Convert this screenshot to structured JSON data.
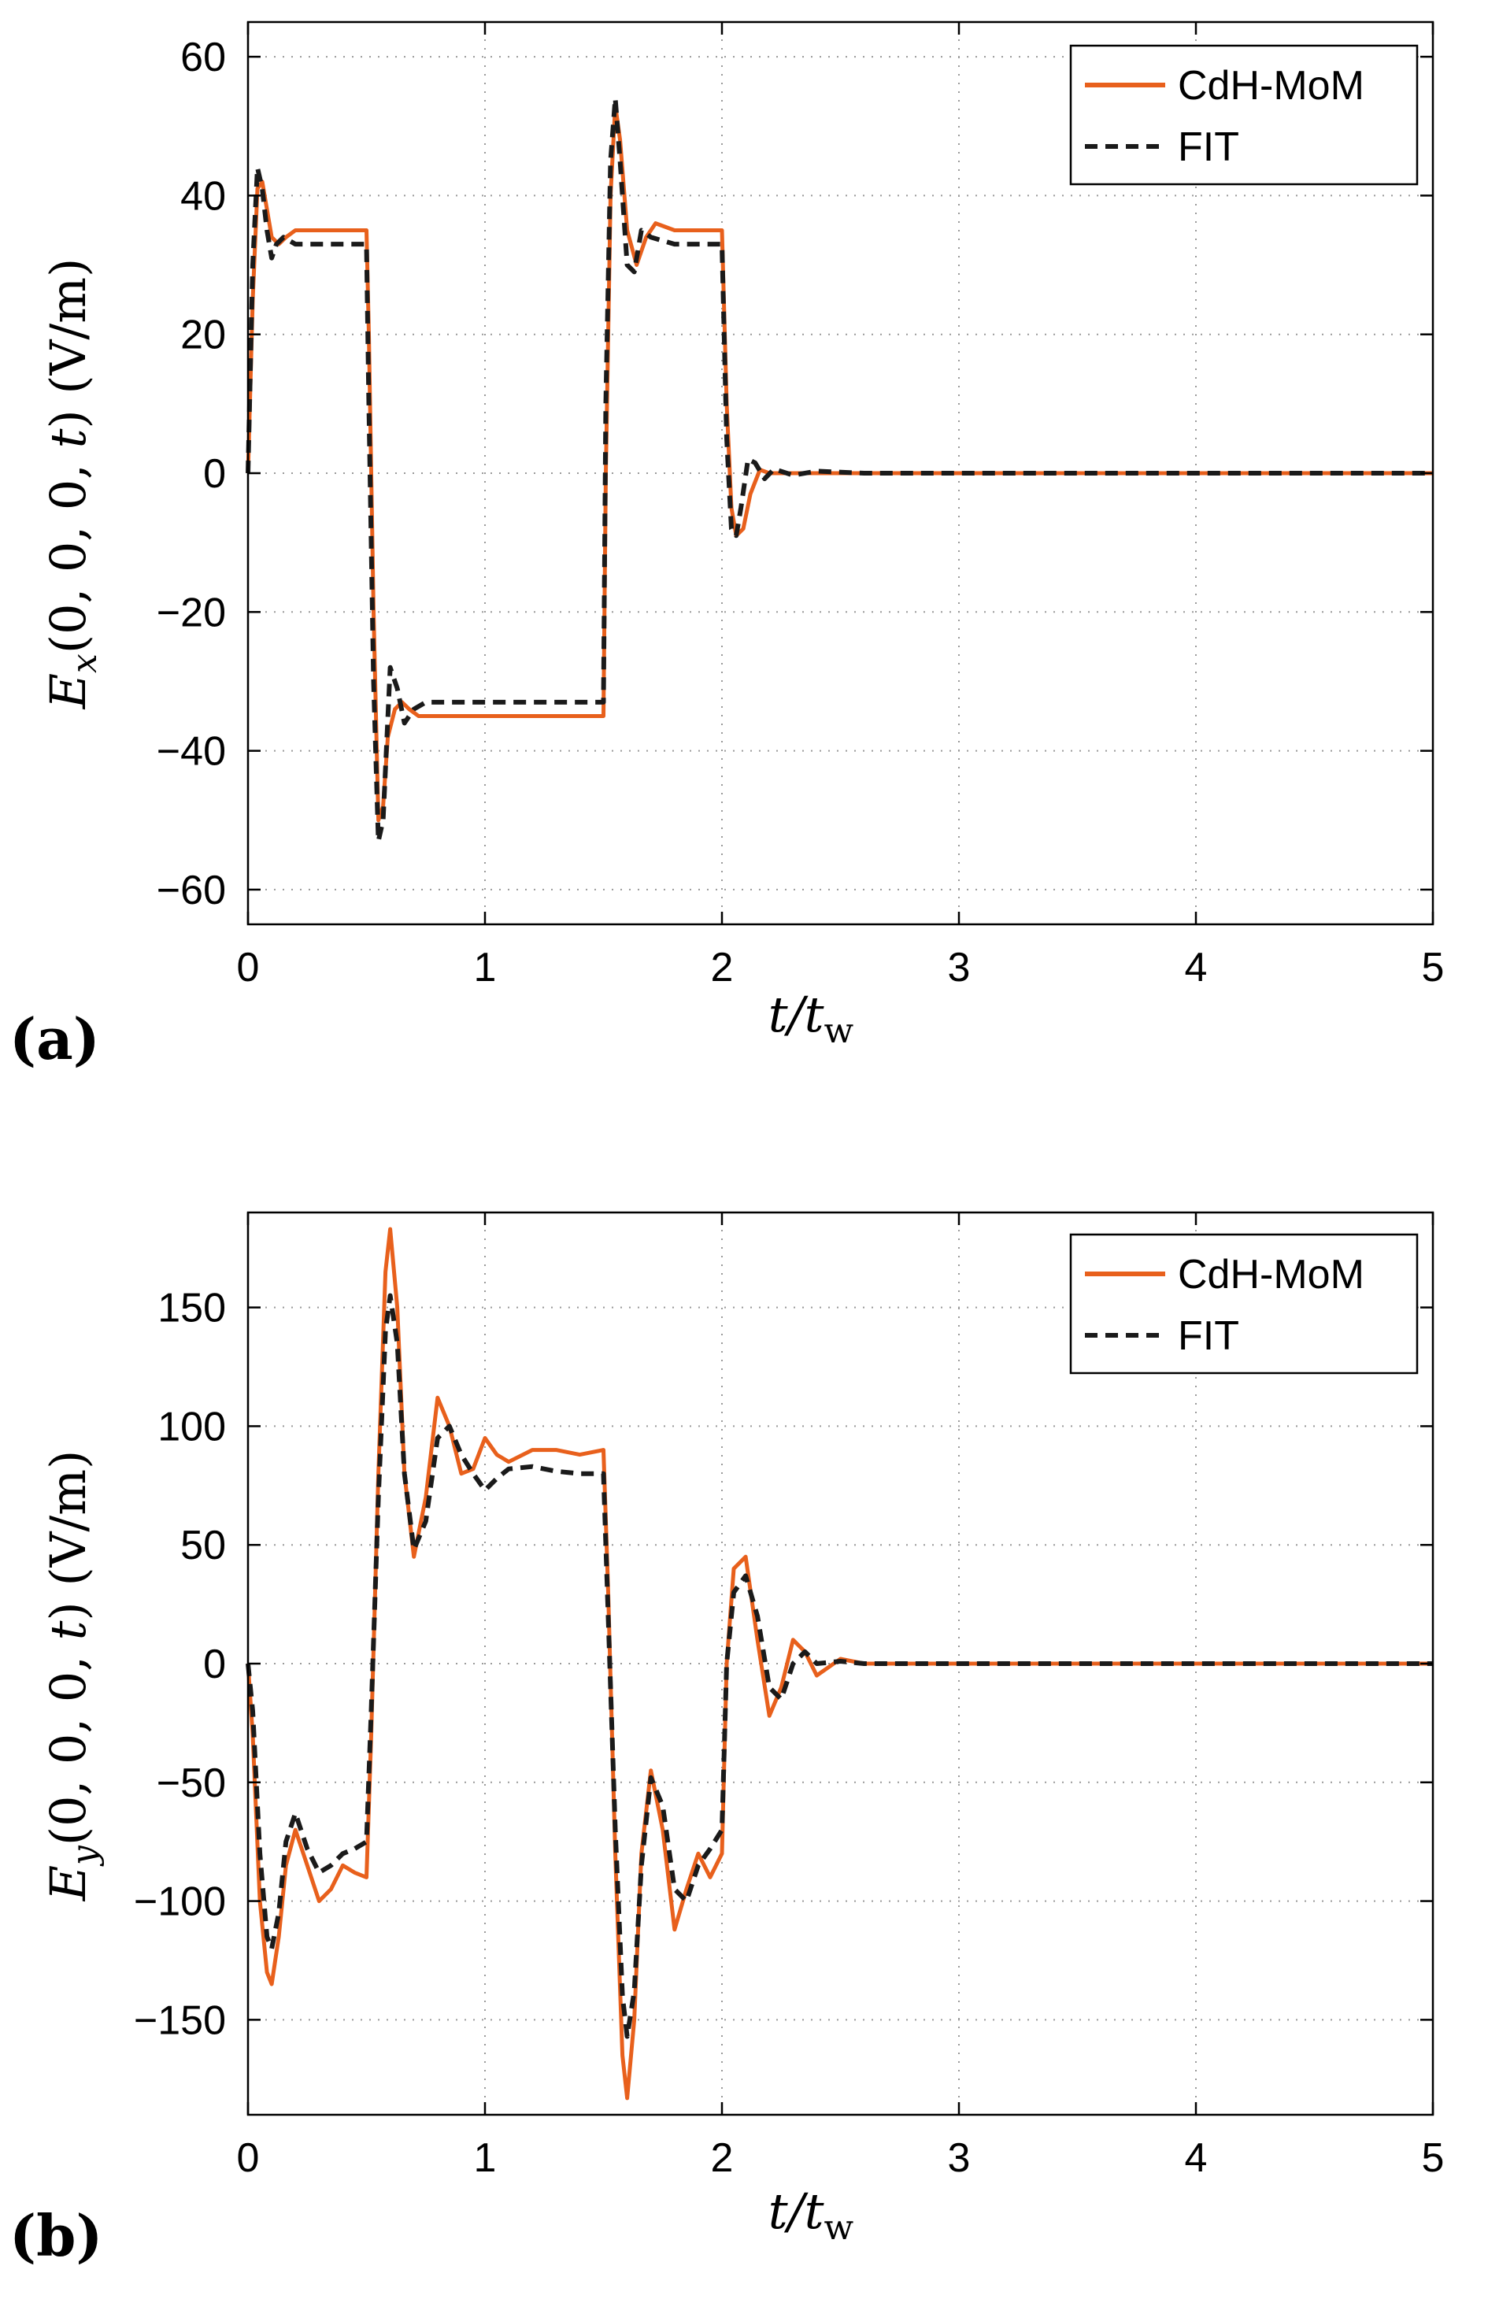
{
  "chart_data": [
    {
      "type": "line",
      "panel_label": "(a)",
      "ylabel": "E_x(0, 0, 0, t)   (V/m)",
      "xlabel": "t/t_w",
      "xlim": [
        0,
        5
      ],
      "ylim": [
        -65,
        65
      ],
      "xticks": [
        0,
        1,
        2,
        3,
        4,
        5
      ],
      "yticks": [
        -60,
        -40,
        -20,
        0,
        20,
        40,
        60
      ],
      "xtick_labels": [
        "0",
        "1",
        "2",
        "3",
        "4",
        "5"
      ],
      "ytick_labels": [
        "−60",
        "−40",
        "−20",
        "0",
        "20",
        "40",
        "60"
      ],
      "grid": true,
      "legend_position": "top-right",
      "series": [
        {
          "name": "CdH-MoM",
          "color": "#e8601c",
          "style": "solid",
          "x": [
            0,
            0.02,
            0.04,
            0.06,
            0.08,
            0.1,
            0.13,
            0.16,
            0.2,
            0.3,
            0.4,
            0.5,
            0.51,
            0.53,
            0.55,
            0.57,
            0.59,
            0.62,
            0.65,
            0.68,
            0.72,
            0.8,
            1.0,
            1.2,
            1.5,
            1.51,
            1.53,
            1.55,
            1.57,
            1.6,
            1.64,
            1.68,
            1.72,
            1.8,
            1.9,
            2.0,
            2.02,
            2.04,
            2.06,
            2.09,
            2.12,
            2.16,
            2.2,
            2.3,
            2.5,
            3.0,
            3.5,
            4.0,
            4.5,
            5.0
          ],
          "y": [
            0,
            25,
            41,
            42,
            38,
            34,
            33,
            34,
            35,
            35,
            35,
            35,
            20,
            -20,
            -50,
            -48,
            -38,
            -34,
            -33,
            -34,
            -35,
            -35,
            -35,
            -35,
            -35,
            0,
            40,
            53,
            48,
            35,
            30,
            34,
            36,
            35,
            35,
            35,
            10,
            -5,
            -9,
            -8,
            -3,
            0.5,
            0,
            0,
            0,
            0,
            0,
            0,
            0,
            0
          ]
        },
        {
          "name": "FIT",
          "color": "#1a1a1a",
          "style": "dashed",
          "x": [
            0,
            0.02,
            0.04,
            0.06,
            0.08,
            0.1,
            0.12,
            0.15,
            0.2,
            0.3,
            0.4,
            0.5,
            0.51,
            0.53,
            0.55,
            0.57,
            0.6,
            0.63,
            0.66,
            0.7,
            0.75,
            0.8,
            1.0,
            1.2,
            1.5,
            1.51,
            1.53,
            1.55,
            1.57,
            1.6,
            1.63,
            1.66,
            1.7,
            1.8,
            1.9,
            2.0,
            2.02,
            2.04,
            2.06,
            2.08,
            2.11,
            2.14,
            2.18,
            2.22,
            2.3,
            2.4,
            2.6,
            3.0,
            4.0,
            5.0
          ],
          "y": [
            0,
            30,
            44,
            41,
            35,
            31,
            33,
            34,
            33,
            33,
            33,
            33,
            10,
            -30,
            -53,
            -50,
            -28,
            -31,
            -36,
            -34,
            -33,
            -33,
            -33,
            -33,
            -33,
            10,
            45,
            54,
            45,
            30,
            29,
            35,
            34,
            33,
            33,
            33,
            5,
            -8,
            -9,
            -5,
            2,
            1.5,
            -0.8,
            0.6,
            -0.3,
            0.3,
            0,
            0,
            0,
            0
          ]
        }
      ]
    },
    {
      "type": "line",
      "panel_label": "(b)",
      "ylabel": "E_y(0, 0, 0, t)   (V/m)",
      "xlabel": "t/t_w",
      "xlim": [
        0,
        5
      ],
      "ylim": [
        -190,
        190
      ],
      "xticks": [
        0,
        1,
        2,
        3,
        4,
        5
      ],
      "yticks": [
        -150,
        -100,
        -50,
        0,
        50,
        100,
        150
      ],
      "xtick_labels": [
        "0",
        "1",
        "2",
        "3",
        "4",
        "5"
      ],
      "ytick_labels": [
        "−150",
        "−100",
        "−50",
        "0",
        "50",
        "100",
        "150"
      ],
      "grid": true,
      "legend_position": "top-right",
      "series": [
        {
          "name": "CdH-MoM",
          "color": "#e8601c",
          "style": "solid",
          "x": [
            0,
            0.02,
            0.05,
            0.08,
            0.1,
            0.13,
            0.16,
            0.2,
            0.25,
            0.3,
            0.35,
            0.4,
            0.45,
            0.5,
            0.52,
            0.55,
            0.58,
            0.6,
            0.63,
            0.66,
            0.7,
            0.75,
            0.8,
            0.85,
            0.9,
            0.95,
            1.0,
            1.05,
            1.1,
            1.2,
            1.3,
            1.4,
            1.5,
            1.52,
            1.55,
            1.58,
            1.6,
            1.63,
            1.66,
            1.7,
            1.75,
            1.8,
            1.85,
            1.9,
            1.95,
            2.0,
            2.02,
            2.05,
            2.1,
            2.15,
            2.2,
            2.25,
            2.3,
            2.35,
            2.4,
            2.5,
            2.6,
            2.7,
            3.0,
            4.0,
            5.0
          ],
          "y": [
            0,
            -30,
            -100,
            -130,
            -135,
            -115,
            -85,
            -70,
            -85,
            -100,
            -95,
            -85,
            -88,
            -90,
            -30,
            80,
            165,
            183,
            150,
            80,
            45,
            70,
            112,
            100,
            80,
            82,
            95,
            88,
            85,
            90,
            90,
            88,
            90,
            30,
            -80,
            -165,
            -183,
            -150,
            -80,
            -45,
            -70,
            -112,
            -95,
            -80,
            -90,
            -80,
            0,
            40,
            45,
            10,
            -22,
            -10,
            10,
            5,
            -5,
            2,
            0,
            0,
            0,
            0,
            0
          ]
        },
        {
          "name": "FIT",
          "color": "#1a1a1a",
          "style": "dashed",
          "x": [
            0,
            0.02,
            0.05,
            0.08,
            0.1,
            0.13,
            0.16,
            0.2,
            0.25,
            0.3,
            0.35,
            0.4,
            0.45,
            0.5,
            0.52,
            0.55,
            0.58,
            0.6,
            0.63,
            0.66,
            0.7,
            0.75,
            0.8,
            0.85,
            0.9,
            0.95,
            1.0,
            1.05,
            1.1,
            1.2,
            1.3,
            1.4,
            1.5,
            1.52,
            1.55,
            1.58,
            1.6,
            1.63,
            1.66,
            1.7,
            1.75,
            1.8,
            1.85,
            1.9,
            1.95,
            2.0,
            2.02,
            2.05,
            2.1,
            2.15,
            2.2,
            2.25,
            2.3,
            2.35,
            2.4,
            2.5,
            2.6,
            2.7,
            3.0,
            4.0,
            5.0
          ],
          "y": [
            0,
            -20,
            -80,
            -115,
            -120,
            -105,
            -75,
            -63,
            -78,
            -88,
            -85,
            -80,
            -78,
            -75,
            -20,
            70,
            140,
            155,
            135,
            80,
            48,
            60,
            95,
            100,
            88,
            80,
            73,
            78,
            82,
            83,
            81,
            80,
            80,
            20,
            -70,
            -140,
            -157,
            -138,
            -85,
            -48,
            -60,
            -95,
            -100,
            -85,
            -78,
            -70,
            0,
            30,
            37,
            20,
            -10,
            -15,
            0,
            5,
            0,
            1,
            0,
            0,
            0,
            0,
            0
          ]
        }
      ]
    }
  ]
}
